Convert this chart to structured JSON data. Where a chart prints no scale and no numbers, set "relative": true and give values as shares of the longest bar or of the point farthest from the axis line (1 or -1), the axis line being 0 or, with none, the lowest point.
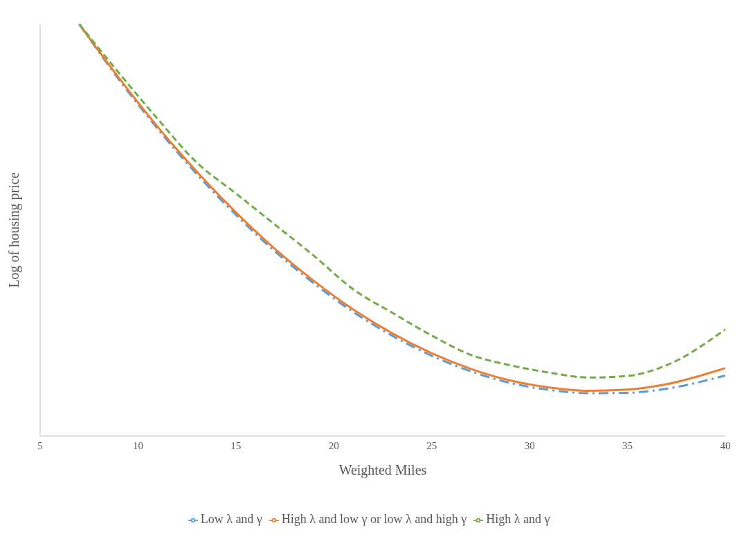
{
  "chart_data": {
    "type": "line",
    "xlabel": "Weighted Miles",
    "ylabel": "Log of housing price",
    "relative": true,
    "x": [
      7,
      9,
      11,
      13,
      15,
      17,
      19,
      21,
      23,
      25,
      27,
      29,
      31,
      33,
      35,
      37,
      40
    ],
    "xlim": [
      5,
      40
    ],
    "xticks": [
      5,
      10,
      15,
      20,
      25,
      30,
      35,
      40
    ],
    "grid": false,
    "legend": "bottom",
    "marker": "none",
    "series": [
      {
        "name": "Low λ and γ",
        "color": "#5b9bd5",
        "line_style": "dashdot",
        "values": [
          1.0,
          0.867,
          0.746,
          0.636,
          0.537,
          0.448,
          0.37,
          0.301,
          0.243,
          0.195,
          0.157,
          0.129,
          0.112,
          0.104,
          0.105,
          0.115,
          0.147
        ]
      },
      {
        "name": "High λ and low γ or low λ and high γ",
        "color": "#ed7d31",
        "line_style": "solid",
        "values": [
          1.0,
          0.871,
          0.751,
          0.642,
          0.543,
          0.454,
          0.376,
          0.307,
          0.249,
          0.201,
          0.163,
          0.135,
          0.118,
          0.11,
          0.113,
          0.126,
          0.165
        ]
      },
      {
        "name": "High λ and γ",
        "color": "#70ad47",
        "line_style": "dashed",
        "values": [
          1.0,
          0.883,
          0.77,
          0.664,
          0.589,
          0.513,
          0.437,
          0.356,
          0.299,
          0.244,
          0.197,
          0.172,
          0.154,
          0.142,
          0.146,
          0.172,
          0.259
        ]
      }
    ]
  }
}
